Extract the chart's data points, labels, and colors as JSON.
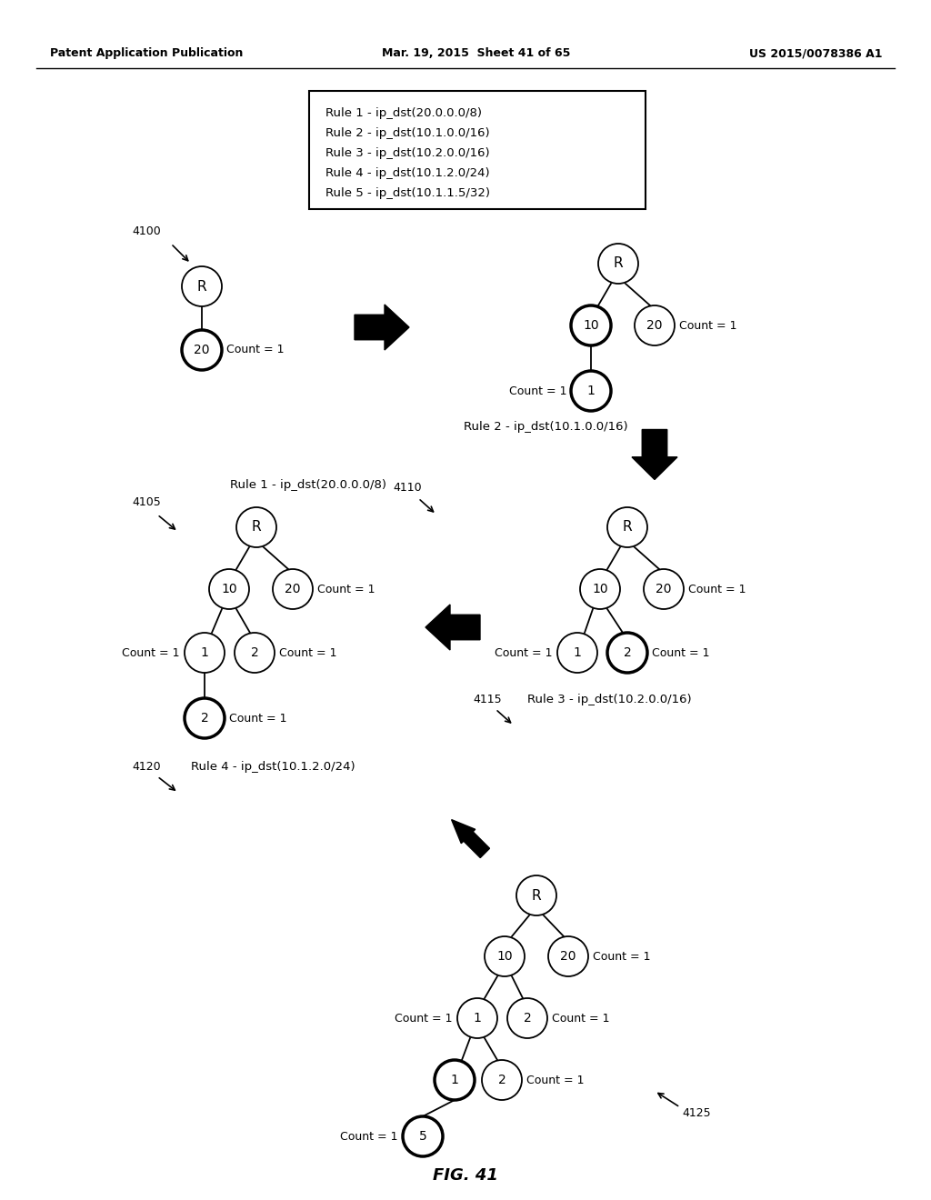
{
  "header_left": "Patent Application Publication",
  "header_mid": "Mar. 19, 2015  Sheet 41 of 65",
  "header_right": "US 2015/0078386 A1",
  "rules_box": [
    "Rule 1 - ip_dst(20.0.0.0/8)",
    "Rule 2 - ip_dst(10.1.0.0/16)",
    "Rule 3 - ip_dst(10.2.0.0/16)",
    "Rule 4 - ip_dst(10.1.2.0/24)",
    "Rule 5 - ip_dst(10.1.1.5/32)"
  ],
  "fig_label": "FIG. 41",
  "background": "#ffffff"
}
